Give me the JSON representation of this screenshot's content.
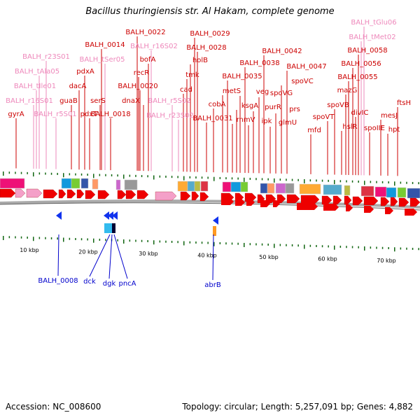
{
  "title": "Bacillus thuringiensis str. Al Hakam, complete genome",
  "accession": "Accession: NC_008600",
  "summary": "Topology: circular; Length: 5,257,091 bp; Genes: 4,882",
  "colors": {
    "protein_label": "#cc0000",
    "rna_label": "#ee88bb",
    "reverse_label": "#0000cc",
    "forward_arrow": "#ee0000",
    "rna_arrow": "#f4a0c8",
    "reverse_arrow": "#1133ee",
    "backbone": "#aaaaaa",
    "tick": "#116611"
  },
  "scale_labels": [
    "10 kbp",
    "20 kbp",
    "30 kbp",
    "40 kbp",
    "50 kbp",
    "60 kbp",
    "70 kbp"
  ],
  "forward_labels": [
    {
      "text": "gyrA",
      "type": "protein"
    },
    {
      "text": "BALH_r16S01",
      "type": "rna"
    },
    {
      "text": "BALH_tIle01",
      "type": "rna"
    },
    {
      "text": "BALH_tAla05",
      "type": "rna"
    },
    {
      "text": "BALH_r23S01",
      "type": "rna"
    },
    {
      "text": "BALH_r5S01",
      "type": "rna"
    },
    {
      "text": "guaB",
      "type": "protein"
    },
    {
      "text": "dacA",
      "type": "protein"
    },
    {
      "text": "pdxA",
      "type": "protein"
    },
    {
      "text": "pdxT",
      "type": "protein"
    },
    {
      "text": "serS",
      "type": "protein"
    },
    {
      "text": "BALH_0014",
      "type": "protein"
    },
    {
      "text": "BALH_tSer05",
      "type": "rna"
    },
    {
      "text": "BALH_0018",
      "type": "protein"
    },
    {
      "text": "BALH_0022",
      "type": "protein"
    },
    {
      "text": "recR",
      "type": "protein"
    },
    {
      "text": "BALH_0020",
      "type": "protein"
    },
    {
      "text": "dnaX",
      "type": "protein"
    },
    {
      "text": "bofA",
      "type": "protein"
    },
    {
      "text": "BALH_r16S02",
      "type": "rna"
    },
    {
      "text": "BALH_r5S02",
      "type": "rna"
    },
    {
      "text": "BALH_r23S02",
      "type": "rna"
    },
    {
      "text": "cad",
      "type": "protein"
    },
    {
      "text": "tmk",
      "type": "protein"
    },
    {
      "text": "holB",
      "type": "protein"
    },
    {
      "text": "BALH_0029",
      "type": "protein"
    },
    {
      "text": "BALH_0028",
      "type": "protein"
    },
    {
      "text": "BALH_0031",
      "type": "protein"
    },
    {
      "text": "cobA",
      "type": "protein"
    },
    {
      "text": "metS",
      "type": "protein"
    },
    {
      "text": "BALH_0035",
      "type": "protein"
    },
    {
      "text": "rnmV",
      "type": "protein"
    },
    {
      "text": "ksgA",
      "type": "protein"
    },
    {
      "text": "veg",
      "type": "protein"
    },
    {
      "text": "BALH_0038",
      "type": "protein"
    },
    {
      "text": "ipk",
      "type": "protein"
    },
    {
      "text": "purR",
      "type": "protein"
    },
    {
      "text": "spoVG",
      "type": "protein"
    },
    {
      "text": "BALH_0042",
      "type": "protein"
    },
    {
      "text": "glmU",
      "type": "protein"
    },
    {
      "text": "prs",
      "type": "protein"
    },
    {
      "text": "spoVC",
      "type": "protein"
    },
    {
      "text": "BALH_0047",
      "type": "protein"
    },
    {
      "text": "mfd",
      "type": "protein"
    },
    {
      "text": "spoVT",
      "type": "protein"
    },
    {
      "text": "spoVB",
      "type": "protein"
    },
    {
      "text": "hslR",
      "type": "protein"
    },
    {
      "text": "mazG",
      "type": "protein"
    },
    {
      "text": "BALH_0055",
      "type": "protein"
    },
    {
      "text": "BALH_0056",
      "type": "protein"
    },
    {
      "text": "divIC",
      "type": "protein"
    },
    {
      "text": "BALH_0058",
      "type": "protein"
    },
    {
      "text": "BALH_tMet02",
      "type": "rna"
    },
    {
      "text": "BALH_tGlu06",
      "type": "rna"
    },
    {
      "text": "spoIIE",
      "type": "protein"
    },
    {
      "text": "mesJ",
      "type": "protein"
    },
    {
      "text": "hpt",
      "type": "protein"
    },
    {
      "text": "ftsH",
      "type": "protein"
    }
  ],
  "reverse_labels": [
    {
      "text": "BALH_0008"
    },
    {
      "text": "dck"
    },
    {
      "text": "dgk"
    },
    {
      "text": "pncA"
    },
    {
      "text": "abrB"
    }
  ]
}
